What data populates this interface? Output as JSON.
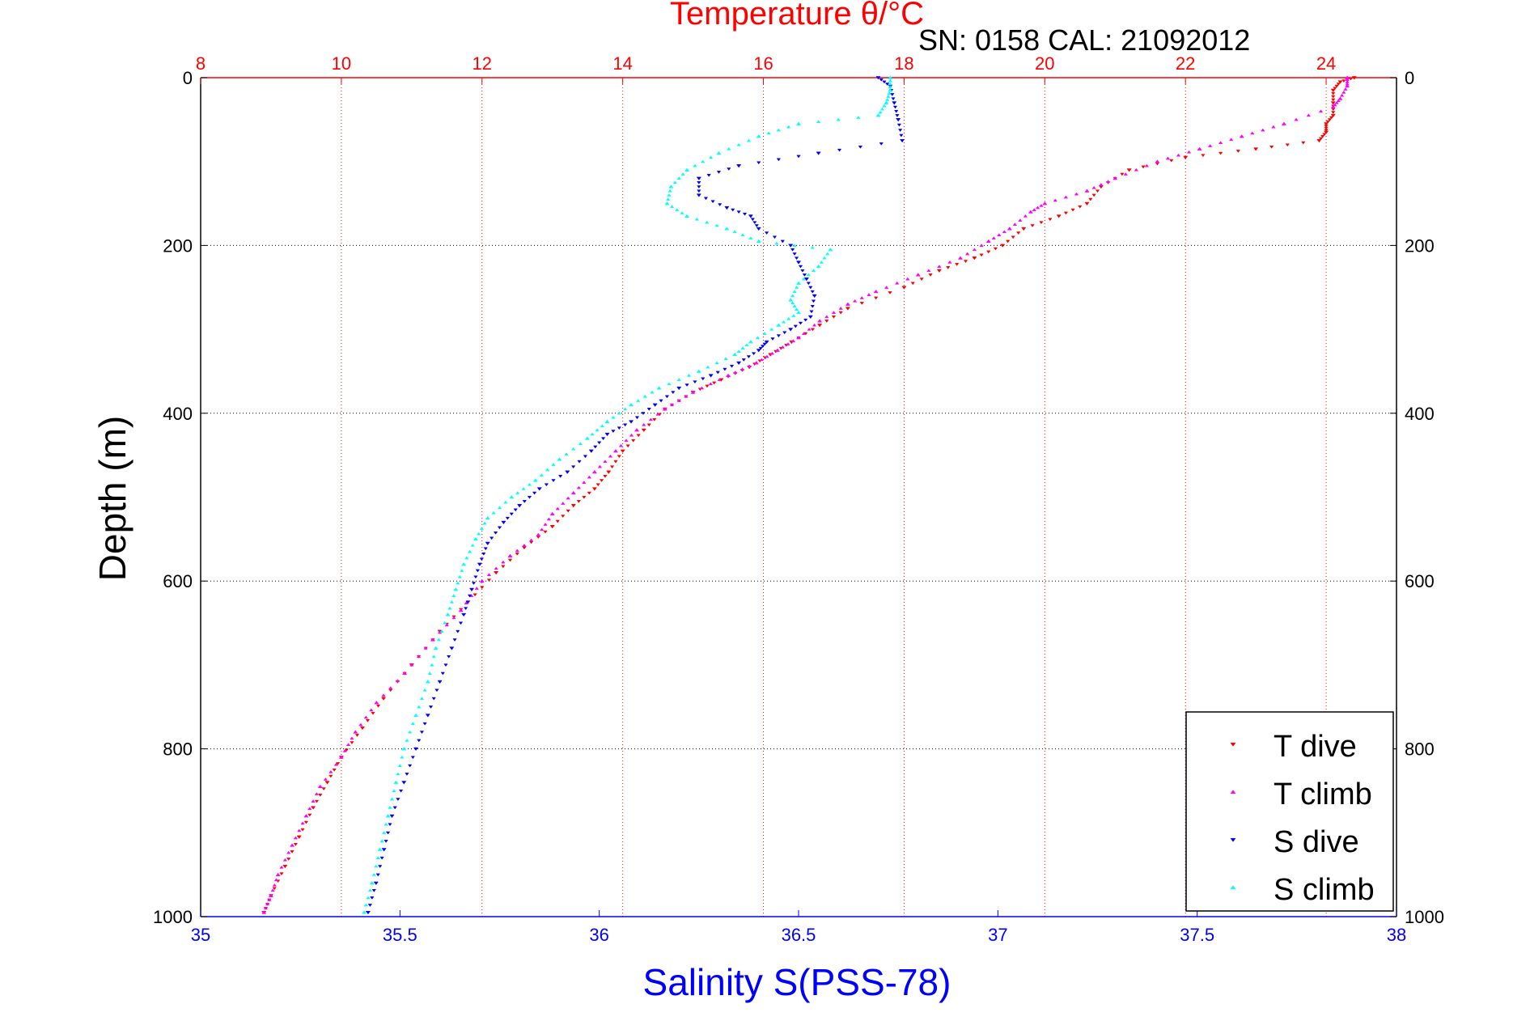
{
  "chart_data": {
    "type": "scatter",
    "title": "Temperature θ/°C",
    "subtitle": "SN: 0158  CAL: 21092012",
    "xlabel": "Salinity S(PSS-78)",
    "ylabel": "Depth (m)",
    "grid": true,
    "legend_position": "bottom-right",
    "x_top": {
      "label": "Temperature θ/°C",
      "range": [
        8,
        25
      ],
      "ticks": [
        8,
        10,
        12,
        14,
        16,
        18,
        20,
        22,
        24
      ],
      "tick_labels": [
        "8",
        "10",
        "12",
        "14",
        "16",
        "18",
        "20",
        "22",
        "24"
      ],
      "color": "#ff0000"
    },
    "x_bottom": {
      "label": "Salinity S(PSS-78)",
      "range": [
        35,
        38
      ],
      "ticks": [
        35,
        35.5,
        36,
        36.5,
        37,
        37.5,
        38
      ],
      "tick_labels": [
        "35",
        "35.5",
        "36",
        "36.5",
        "37",
        "37.5",
        "38"
      ],
      "color": "#0000ff"
    },
    "y": {
      "label": "Depth (m)",
      "range": [
        0,
        1000
      ],
      "reversed": true,
      "ticks": [
        0,
        200,
        400,
        600,
        800,
        1000
      ],
      "tick_labels": [
        "0",
        "200",
        "400",
        "600",
        "800",
        "1000"
      ]
    },
    "series": [
      {
        "name": "T dive",
        "axis": "temperature",
        "color": "#ff0000",
        "marker": "triangle-down",
        "points": [
          [
            24.4,
            0
          ],
          [
            24.2,
            5
          ],
          [
            24.1,
            15
          ],
          [
            24.1,
            30
          ],
          [
            24.1,
            45
          ],
          [
            24.0,
            55
          ],
          [
            24.0,
            65
          ],
          [
            23.9,
            75
          ],
          [
            23.0,
            85
          ],
          [
            22.0,
            95
          ],
          [
            21.2,
            110
          ],
          [
            20.8,
            130
          ],
          [
            20.6,
            150
          ],
          [
            20.2,
            165
          ],
          [
            19.7,
            180
          ],
          [
            19.4,
            200
          ],
          [
            19.0,
            215
          ],
          [
            18.5,
            230
          ],
          [
            18.0,
            250
          ],
          [
            17.2,
            275
          ],
          [
            16.8,
            295
          ],
          [
            16.4,
            315
          ],
          [
            16.1,
            330
          ],
          [
            15.8,
            345
          ],
          [
            15.4,
            360
          ],
          [
            15.0,
            375
          ],
          [
            14.6,
            395
          ],
          [
            14.3,
            420
          ],
          [
            14.0,
            445
          ],
          [
            13.8,
            470
          ],
          [
            13.6,
            490
          ],
          [
            13.3,
            510
          ],
          [
            13.0,
            535
          ],
          [
            12.6,
            560
          ],
          [
            12.2,
            590
          ],
          [
            11.8,
            625
          ],
          [
            11.4,
            660
          ],
          [
            11.0,
            700
          ],
          [
            10.6,
            740
          ],
          [
            10.3,
            775
          ],
          [
            10.0,
            810
          ],
          [
            9.8,
            840
          ],
          [
            9.6,
            870
          ],
          [
            9.4,
            905
          ],
          [
            9.2,
            940
          ],
          [
            9.0,
            975
          ],
          [
            8.9,
            995
          ]
        ]
      },
      {
        "name": "T climb",
        "axis": "temperature",
        "color": "#ff00ff",
        "marker": "triangle-up",
        "points": [
          [
            24.3,
            0
          ],
          [
            24.3,
            10
          ],
          [
            24.2,
            25
          ],
          [
            24.1,
            35
          ],
          [
            23.4,
            55
          ],
          [
            22.8,
            70
          ],
          [
            22.2,
            85
          ],
          [
            21.6,
            100
          ],
          [
            21.0,
            120
          ],
          [
            20.6,
            135
          ],
          [
            20.0,
            150
          ],
          [
            19.8,
            160
          ],
          [
            19.5,
            180
          ],
          [
            19.2,
            195
          ],
          [
            18.8,
            215
          ],
          [
            18.2,
            235
          ],
          [
            17.6,
            255
          ],
          [
            17.2,
            270
          ],
          [
            16.8,
            290
          ],
          [
            16.5,
            310
          ],
          [
            16.2,
            325
          ],
          [
            15.9,
            340
          ],
          [
            15.5,
            355
          ],
          [
            15.0,
            375
          ],
          [
            14.6,
            395
          ],
          [
            14.2,
            420
          ],
          [
            13.9,
            445
          ],
          [
            13.6,
            470
          ],
          [
            13.3,
            495
          ],
          [
            13.0,
            520
          ],
          [
            12.8,
            545
          ],
          [
            12.4,
            570
          ],
          [
            12.0,
            600
          ],
          [
            11.7,
            635
          ],
          [
            11.3,
            670
          ],
          [
            10.9,
            710
          ],
          [
            10.5,
            745
          ],
          [
            10.2,
            780
          ],
          [
            10.0,
            810
          ],
          [
            9.7,
            845
          ],
          [
            9.5,
            880
          ],
          [
            9.3,
            915
          ],
          [
            9.1,
            950
          ],
          [
            9.0,
            975
          ],
          [
            8.9,
            995
          ]
        ]
      },
      {
        "name": "S dive",
        "axis": "salinity",
        "color": "#0000ff",
        "marker": "triangle-down",
        "points": [
          [
            36.7,
            0
          ],
          [
            36.73,
            10
          ],
          [
            36.74,
            30
          ],
          [
            36.75,
            50
          ],
          [
            36.76,
            75
          ],
          [
            36.55,
            90
          ],
          [
            36.35,
            105
          ],
          [
            36.25,
            120
          ],
          [
            36.25,
            140
          ],
          [
            36.32,
            155
          ],
          [
            36.38,
            165
          ],
          [
            36.4,
            180
          ],
          [
            36.48,
            200
          ],
          [
            36.5,
            220
          ],
          [
            36.52,
            240
          ],
          [
            36.54,
            260
          ],
          [
            36.53,
            285
          ],
          [
            36.48,
            300
          ],
          [
            36.42,
            315
          ],
          [
            36.4,
            325
          ],
          [
            36.35,
            340
          ],
          [
            36.28,
            355
          ],
          [
            36.2,
            370
          ],
          [
            36.14,
            390
          ],
          [
            36.08,
            410
          ],
          [
            36.02,
            425
          ],
          [
            35.98,
            445
          ],
          [
            35.92,
            470
          ],
          [
            35.85,
            490
          ],
          [
            35.8,
            510
          ],
          [
            35.76,
            530
          ],
          [
            35.72,
            555
          ],
          [
            35.7,
            580
          ],
          [
            35.68,
            610
          ],
          [
            35.66,
            640
          ],
          [
            35.63,
            680
          ],
          [
            35.6,
            720
          ],
          [
            35.57,
            760
          ],
          [
            35.54,
            800
          ],
          [
            35.51,
            840
          ],
          [
            35.48,
            880
          ],
          [
            35.46,
            920
          ],
          [
            35.44,
            960
          ],
          [
            35.42,
            995
          ]
        ]
      },
      {
        "name": "S climb",
        "axis": "salinity",
        "color": "#00ffff",
        "marker": "triangle-up",
        "points": [
          [
            36.73,
            0
          ],
          [
            36.73,
            15
          ],
          [
            36.72,
            30
          ],
          [
            36.7,
            45
          ],
          [
            36.5,
            55
          ],
          [
            36.4,
            70
          ],
          [
            36.3,
            90
          ],
          [
            36.22,
            110
          ],
          [
            36.18,
            130
          ],
          [
            36.17,
            150
          ],
          [
            36.22,
            165
          ],
          [
            36.32,
            180
          ],
          [
            36.4,
            195
          ],
          [
            36.58,
            205
          ],
          [
            36.55,
            225
          ],
          [
            36.5,
            245
          ],
          [
            36.48,
            265
          ],
          [
            36.5,
            280
          ],
          [
            36.45,
            295
          ],
          [
            36.38,
            315
          ],
          [
            36.34,
            330
          ],
          [
            36.25,
            350
          ],
          [
            36.15,
            370
          ],
          [
            36.08,
            390
          ],
          [
            36.02,
            410
          ],
          [
            35.97,
            430
          ],
          [
            35.9,
            455
          ],
          [
            35.84,
            480
          ],
          [
            35.78,
            500
          ],
          [
            35.72,
            525
          ],
          [
            35.69,
            550
          ],
          [
            35.66,
            580
          ],
          [
            35.64,
            610
          ],
          [
            35.62,
            640
          ],
          [
            35.59,
            680
          ],
          [
            35.57,
            720
          ],
          [
            35.54,
            760
          ],
          [
            35.51,
            800
          ],
          [
            35.49,
            840
          ],
          [
            35.47,
            880
          ],
          [
            35.45,
            920
          ],
          [
            35.43,
            960
          ],
          [
            35.41,
            995
          ]
        ]
      }
    ]
  }
}
